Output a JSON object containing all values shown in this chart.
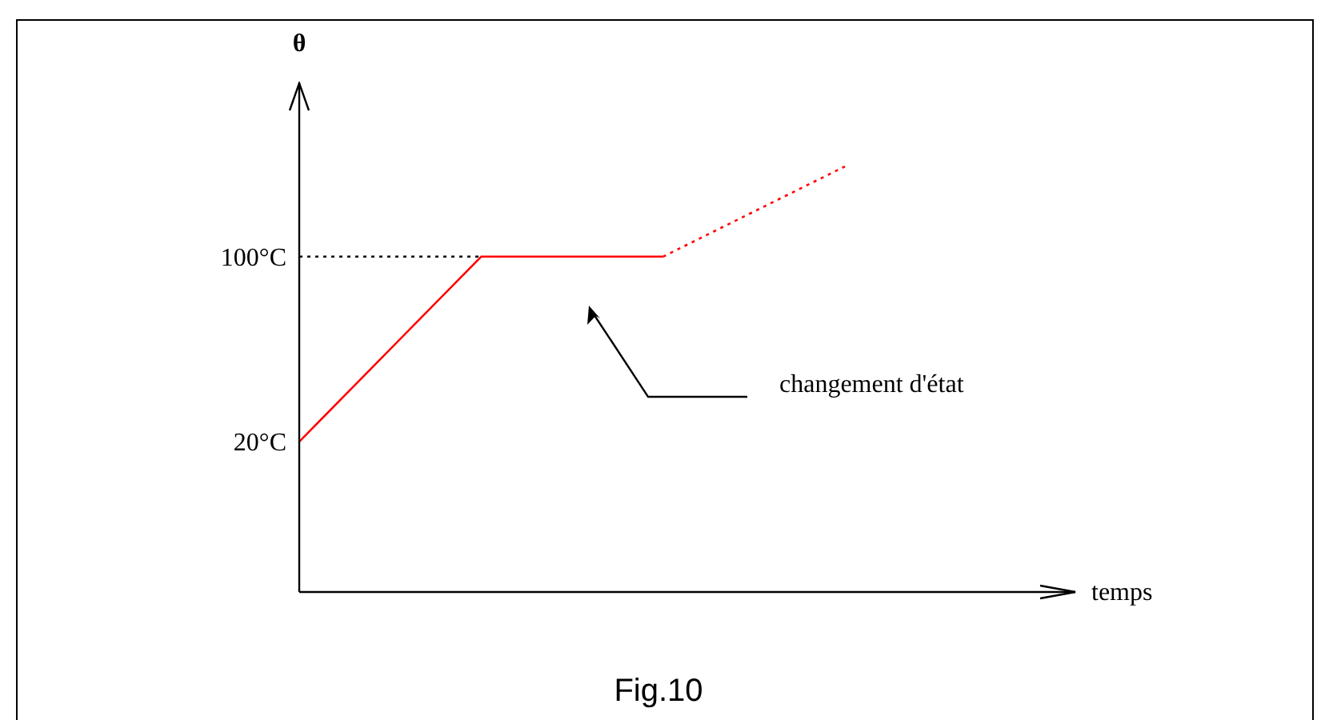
{
  "chart_data": {
    "type": "line",
    "xlabel": "temps",
    "ylabel": "θ",
    "categories": [
      null,
      null,
      null,
      null
    ],
    "series": [
      {
        "type": "line",
        "color": "#ff0000",
        "values": [
          20,
          100,
          100,
          null
        ],
        "line_style": "solid"
      },
      {
        "type": "line",
        "color": "#ff0000",
        "values": [
          null,
          null,
          100,
          139
        ],
        "line_style": "dotted"
      },
      {
        "type": "line",
        "color": "#000000",
        "values": [
          100,
          100,
          null,
          null
        ],
        "line_style": "dotted"
      }
    ],
    "ylim": [
      -45,
      175
    ],
    "yticks": [
      {
        "value": 20,
        "label": "20°C"
      },
      {
        "value": 100,
        "label": "100°C"
      }
    ],
    "grid": false,
    "legend": false,
    "marker": "none",
    "annotations": [
      "changement d'état",
      "Fig.10"
    ]
  }
}
